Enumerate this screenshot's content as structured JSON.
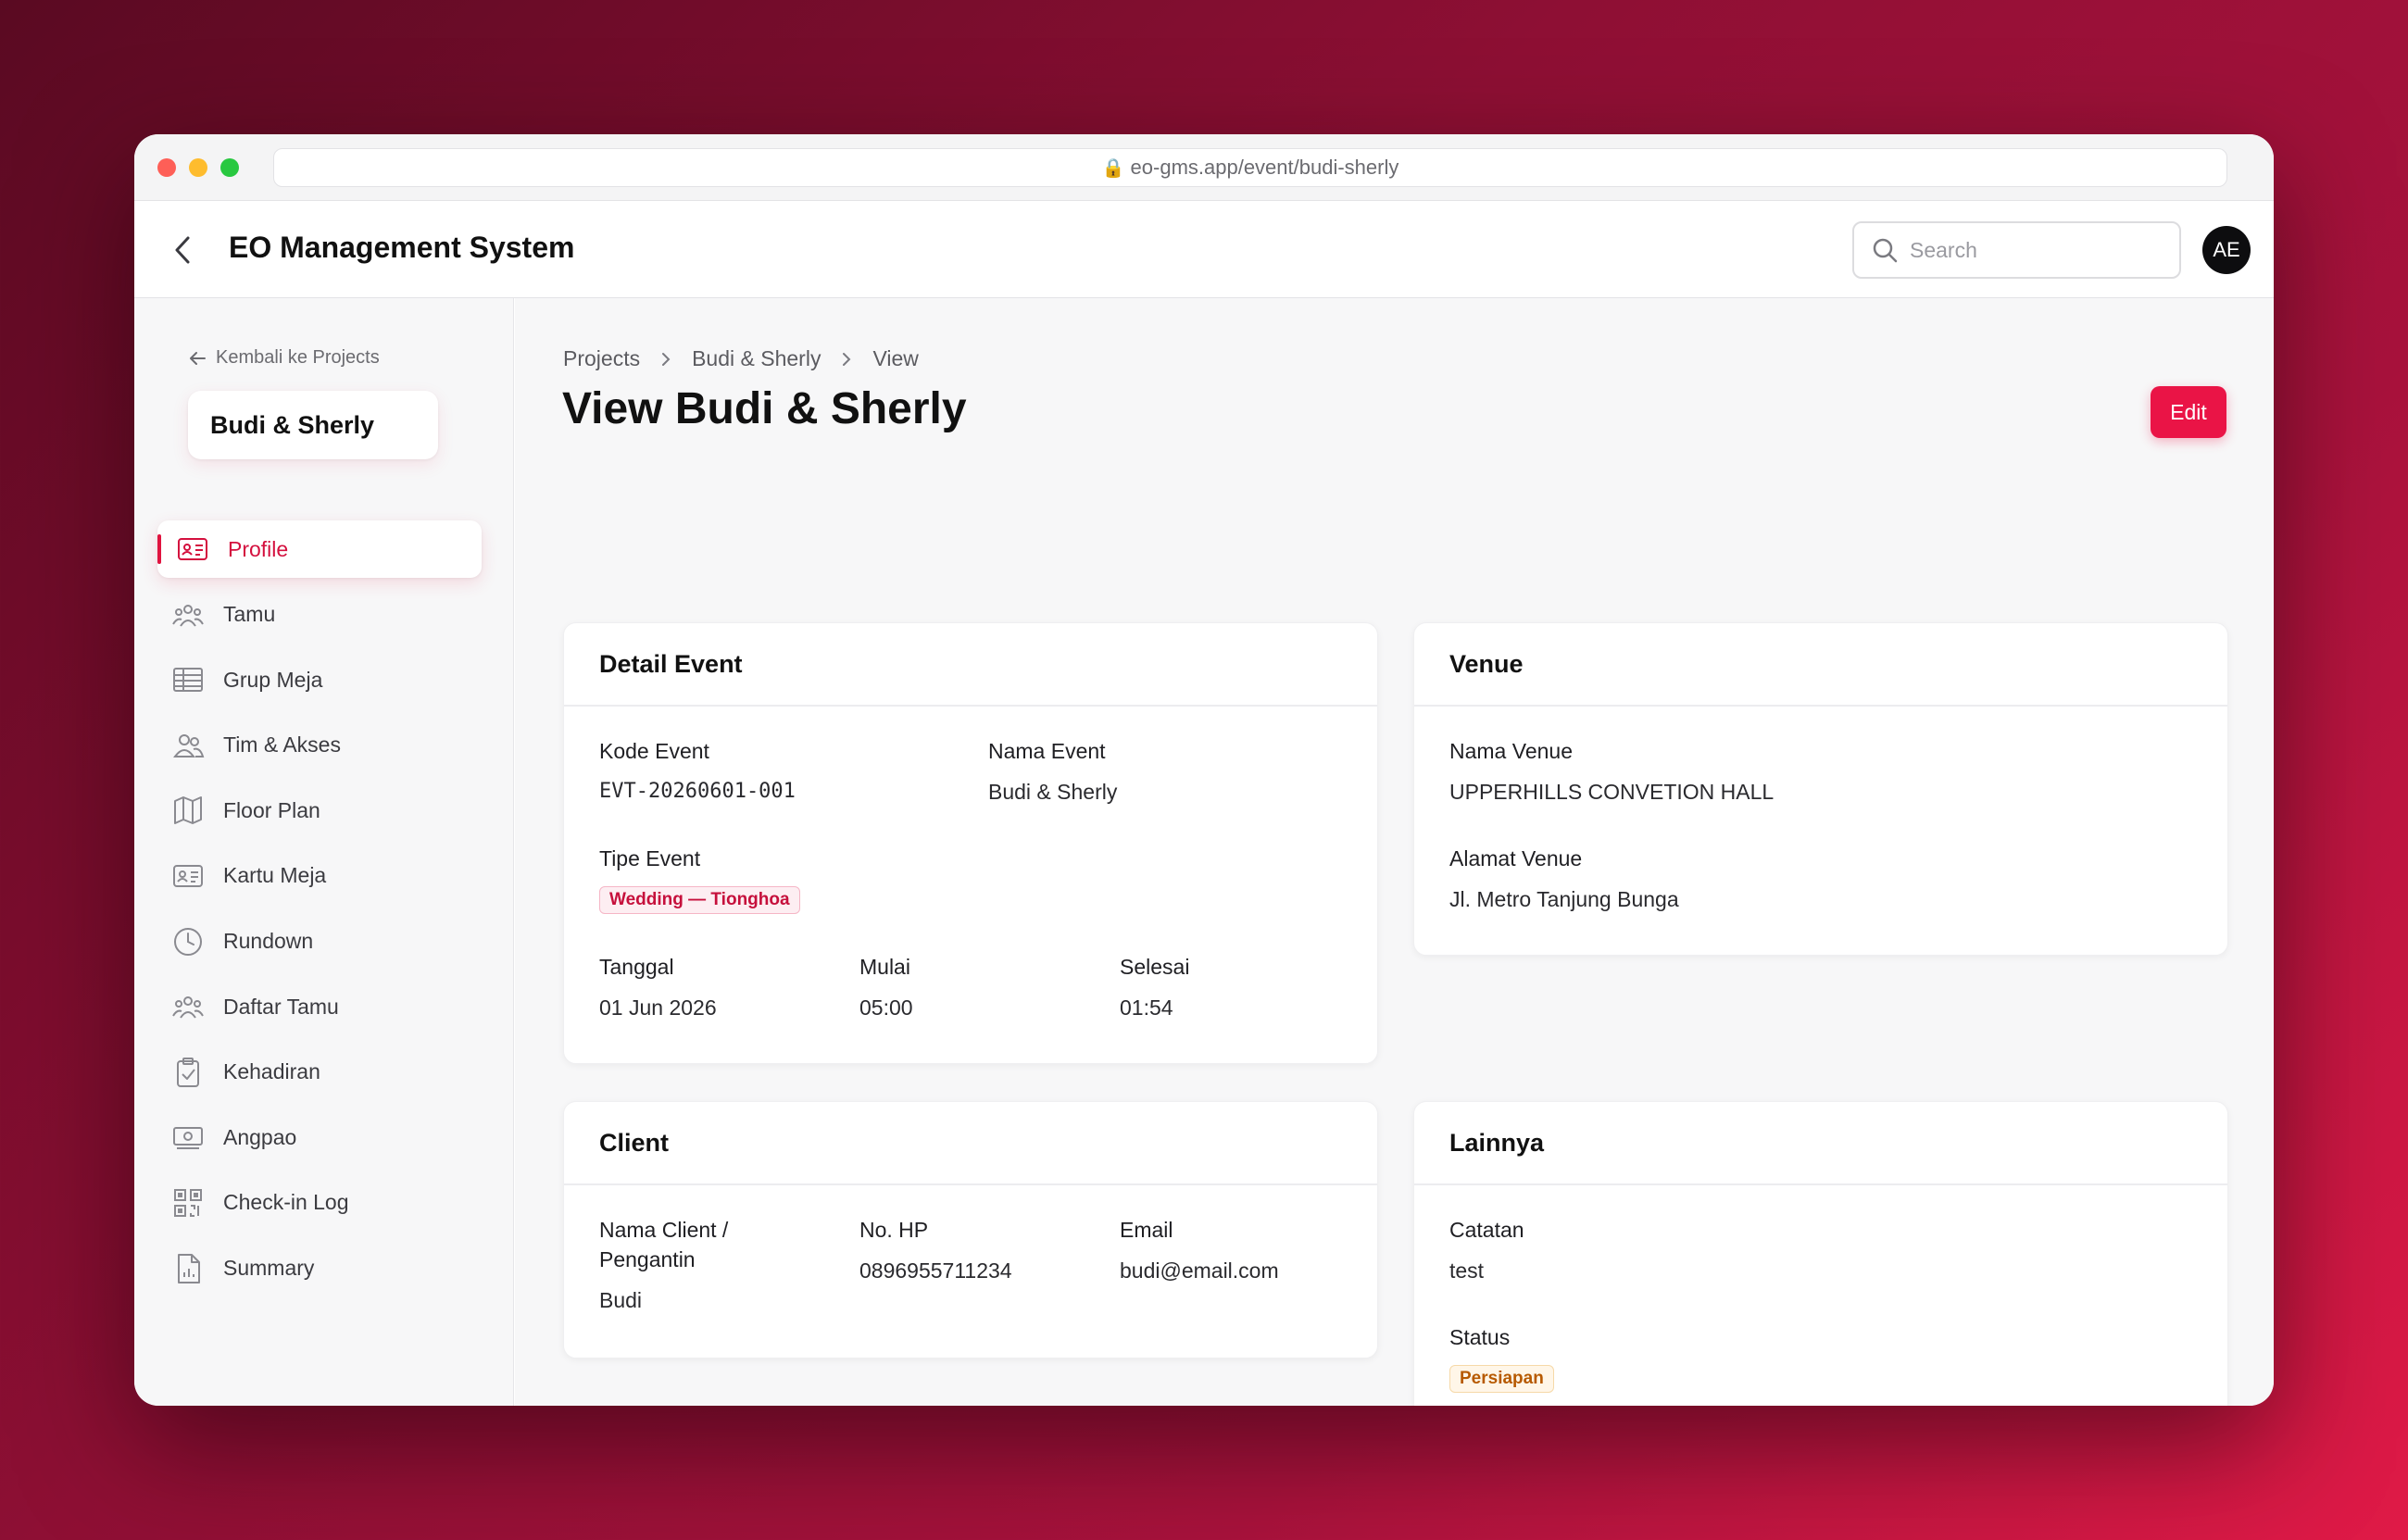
{
  "browser": {
    "url": "eo-gms.app/event/budi-sherly"
  },
  "header": {
    "title": "EO Management System",
    "search_placeholder": "Search",
    "avatar_initials": "AE"
  },
  "sidebar": {
    "back_label": "Kembali ke Projects",
    "project_name": "Budi & Sherly",
    "items": [
      {
        "label": "Profile",
        "icon": "id-card-icon",
        "active": true
      },
      {
        "label": "Tamu",
        "icon": "users-icon"
      },
      {
        "label": "Grup Meja",
        "icon": "table-icon"
      },
      {
        "label": "Tim & Akses",
        "icon": "team-icon"
      },
      {
        "label": "Floor Plan",
        "icon": "map-icon"
      },
      {
        "label": "Kartu Meja",
        "icon": "card-icon"
      },
      {
        "label": "Rundown",
        "icon": "clock-icon"
      },
      {
        "label": "Daftar Tamu",
        "icon": "guest-list-icon"
      },
      {
        "label": "Kehadiran",
        "icon": "clipboard-check-icon"
      },
      {
        "label": "Angpao",
        "icon": "money-icon"
      },
      {
        "label": "Check-in Log",
        "icon": "qr-code-icon"
      },
      {
        "label": "Summary",
        "icon": "report-icon"
      }
    ]
  },
  "main": {
    "breadcrumb": [
      "Projects",
      "Budi & Sherly",
      "View"
    ],
    "title": "View Budi & Sherly",
    "edit_label": "Edit",
    "detail_event": {
      "title": "Detail Event",
      "kode_label": "Kode Event",
      "kode_value": "EVT-20260601-001",
      "nama_label": "Nama Event",
      "nama_value": "Budi & Sherly",
      "tipe_label": "Tipe Event",
      "tipe_value": "Wedding — Tionghoa",
      "tanggal_label": "Tanggal",
      "tanggal_value": "01 Jun 2026",
      "mulai_label": "Mulai",
      "mulai_value": "05:00",
      "selesai_label": "Selesai",
      "selesai_value": "01:54"
    },
    "venue": {
      "title": "Venue",
      "nama_label": "Nama Venue",
      "nama_value": "UPPERHILLS CONVETION HALL",
      "alamat_label": "Alamat Venue",
      "alamat_value": "Jl. Metro Tanjung Bunga"
    },
    "client": {
      "title": "Client",
      "nama_label_line1": "Nama Client /",
      "nama_label_line2": "Pengantin",
      "nama_value": "Budi",
      "hp_label": "No. HP",
      "hp_value": "0896955711234",
      "email_label": "Email",
      "email_value": "budi@email.com"
    },
    "lainnya": {
      "title": "Lainnya",
      "catatan_label": "Catatan",
      "catatan_value": "test",
      "status_label": "Status",
      "status_value": "Persiapan"
    }
  }
}
